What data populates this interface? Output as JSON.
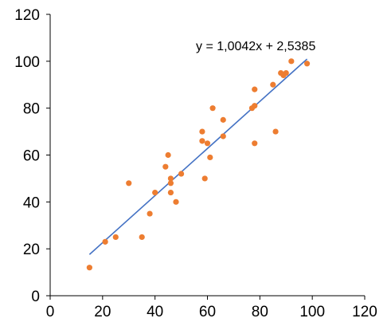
{
  "chart_data": {
    "type": "scatter",
    "title": "",
    "xlabel": "",
    "ylabel": "",
    "xlim": [
      0,
      120
    ],
    "ylim": [
      0,
      120
    ],
    "x_ticks": [
      "0",
      "20",
      "40",
      "60",
      "80",
      "100",
      "120"
    ],
    "y_ticks": [
      "0",
      "20",
      "40",
      "60",
      "80",
      "100",
      "120"
    ],
    "grid": false,
    "legend": "none",
    "colors": {
      "points": "#ED7D31",
      "trendline": "#4472C4",
      "axis": "#000000"
    },
    "trendline": {
      "slope": 1.0042,
      "intercept": 2.5385,
      "x_range": [
        15,
        98
      ],
      "label": "y = 1,0042x + 2,5385"
    },
    "points": [
      {
        "x": 15,
        "y": 12
      },
      {
        "x": 21,
        "y": 23
      },
      {
        "x": 25,
        "y": 25
      },
      {
        "x": 30,
        "y": 48
      },
      {
        "x": 35,
        "y": 25
      },
      {
        "x": 38,
        "y": 35
      },
      {
        "x": 40,
        "y": 44
      },
      {
        "x": 44,
        "y": 55
      },
      {
        "x": 45,
        "y": 60
      },
      {
        "x": 46,
        "y": 48
      },
      {
        "x": 46,
        "y": 50
      },
      {
        "x": 46,
        "y": 44
      },
      {
        "x": 48,
        "y": 40
      },
      {
        "x": 50,
        "y": 52
      },
      {
        "x": 58,
        "y": 70
      },
      {
        "x": 58,
        "y": 66
      },
      {
        "x": 59,
        "y": 50
      },
      {
        "x": 60,
        "y": 65
      },
      {
        "x": 61,
        "y": 59
      },
      {
        "x": 62,
        "y": 80
      },
      {
        "x": 66,
        "y": 75
      },
      {
        "x": 66,
        "y": 68
      },
      {
        "x": 77,
        "y": 80
      },
      {
        "x": 78,
        "y": 88
      },
      {
        "x": 78,
        "y": 81
      },
      {
        "x": 78,
        "y": 65
      },
      {
        "x": 85,
        "y": 90
      },
      {
        "x": 86,
        "y": 70
      },
      {
        "x": 88,
        "y": 95
      },
      {
        "x": 89,
        "y": 94
      },
      {
        "x": 90,
        "y": 95
      },
      {
        "x": 92,
        "y": 100
      },
      {
        "x": 98,
        "y": 99
      }
    ]
  }
}
